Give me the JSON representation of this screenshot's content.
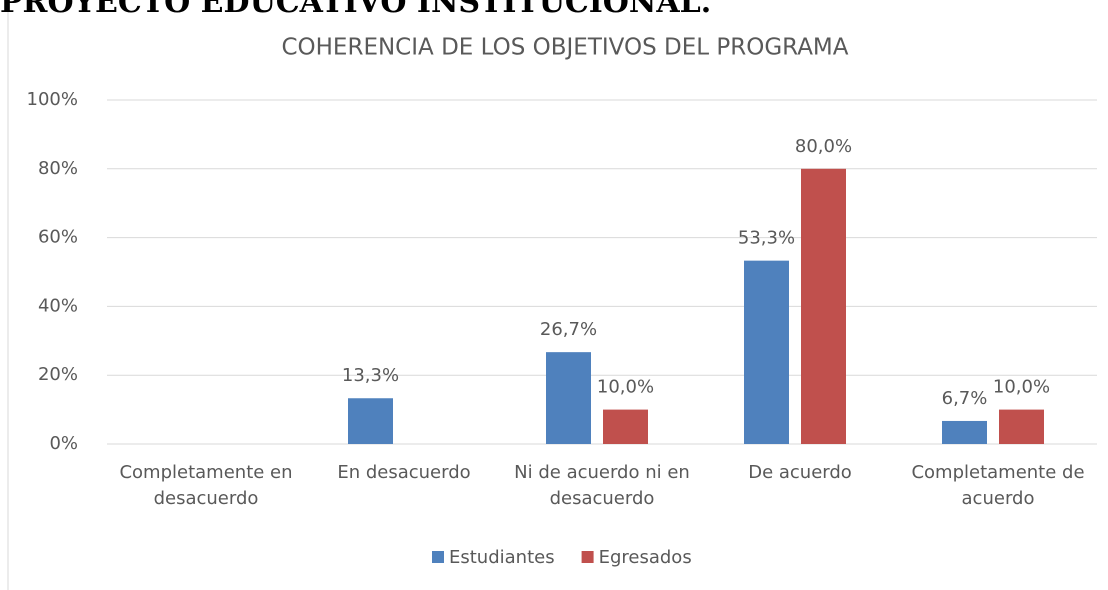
{
  "header": {
    "text": "PROYECTO EDUCATIVO INSTITUCIONAL."
  },
  "chart_data": {
    "type": "bar",
    "title": "COHERENCIA DE LOS OBJETIVOS DEL PROGRAMA",
    "categories": [
      "Completamente en desacuerdo",
      "En desacuerdo",
      "Ni de acuerdo ni en desacuerdo",
      "De acuerdo",
      "Completamente de acuerdo"
    ],
    "series": [
      {
        "name": "Estudiantes",
        "color": "#4f81bd",
        "values": [
          null,
          13.3,
          26.7,
          53.3,
          6.7
        ],
        "value_labels": [
          null,
          "13,3%",
          "26,7%",
          "53,3%",
          "6,7%"
        ]
      },
      {
        "name": "Egresados",
        "color": "#c0504d",
        "values": [
          null,
          null,
          10.0,
          80.0,
          10.0
        ],
        "value_labels": [
          null,
          null,
          "10,0%",
          "80,0%",
          "10,0%"
        ]
      }
    ],
    "ylim": [
      0,
      100
    ],
    "yticks": [
      {
        "value": 0,
        "label": "0%"
      },
      {
        "value": 20,
        "label": "20%"
      },
      {
        "value": 40,
        "label": "40%"
      },
      {
        "value": 60,
        "label": "60%"
      },
      {
        "value": 80,
        "label": "80%"
      },
      {
        "value": 100,
        "label": "100%"
      }
    ],
    "grid": true,
    "legend": "bottom"
  }
}
